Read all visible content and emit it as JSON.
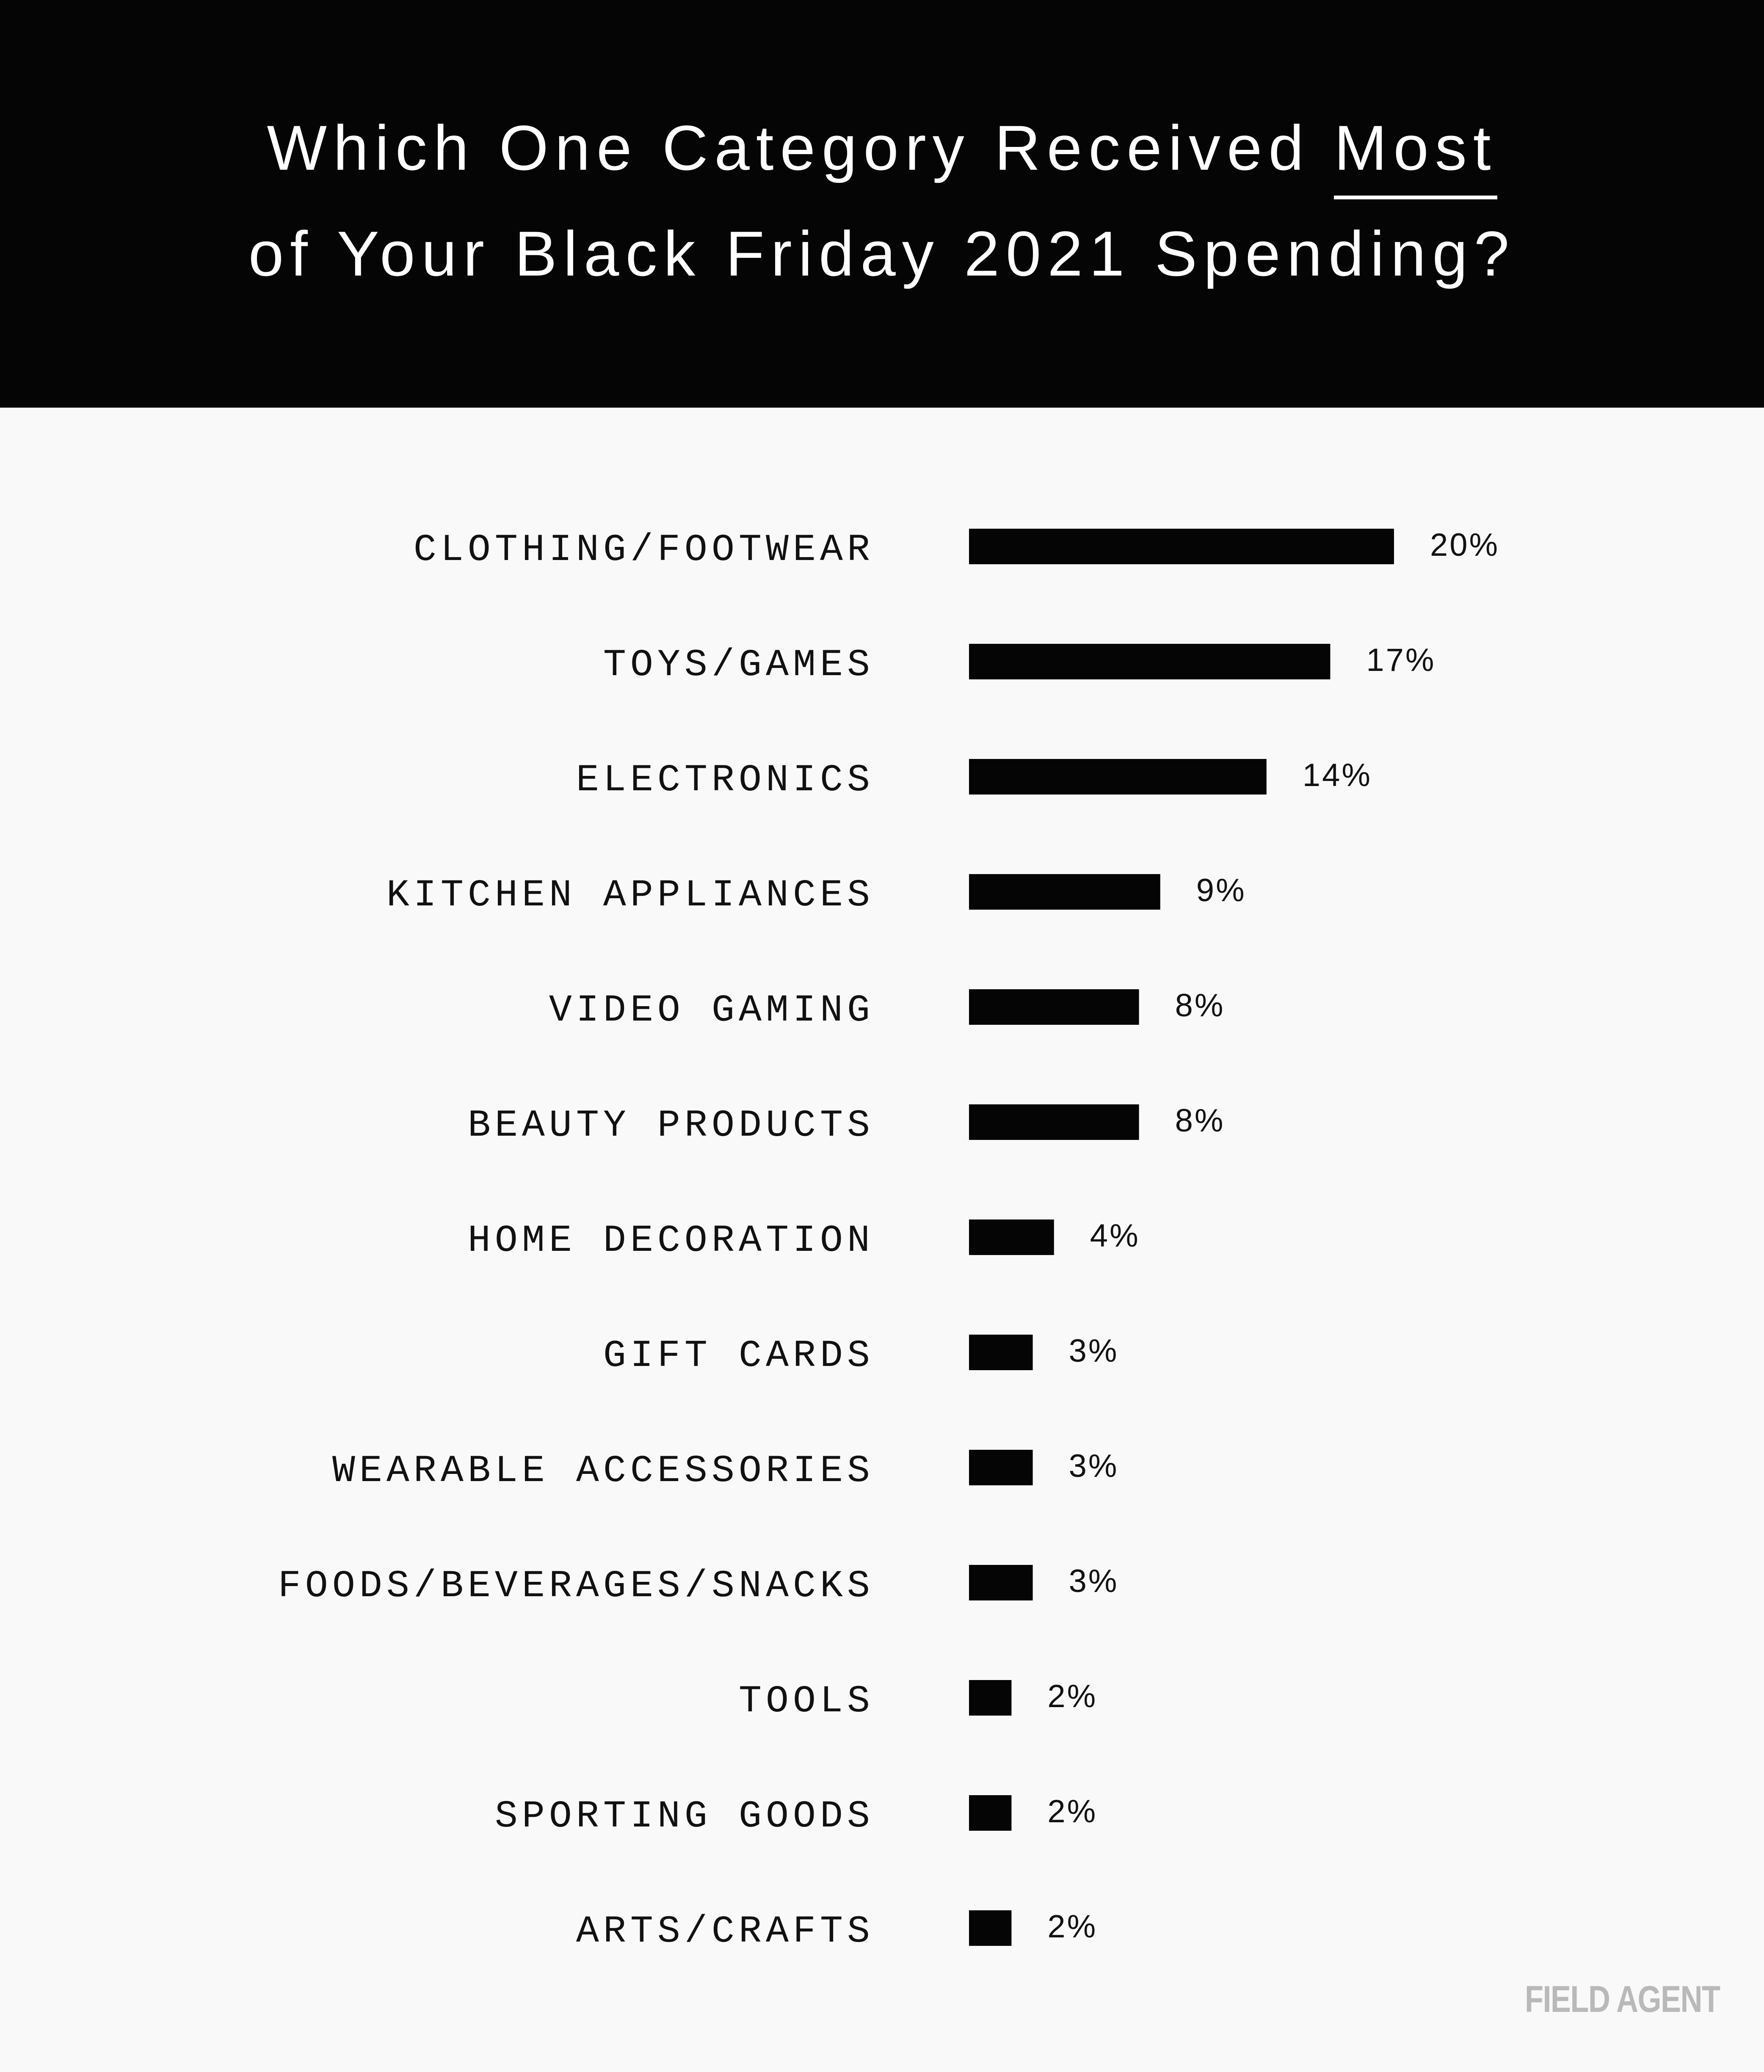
{
  "title": {
    "part1": "Which One Category Received ",
    "emphasis": "Most",
    "line2": "of Your Black Friday 2021 Spending?"
  },
  "brand": "FIELD AGENT",
  "colors": {
    "background": "#f9f9f9",
    "header": "#050505",
    "bar": "#050505"
  },
  "chart_data": {
    "type": "bar",
    "orientation": "horizontal",
    "title": "Which One Category Received Most of Your Black Friday 2021 Spending?",
    "categories": [
      "CLOTHING/FOOTWEAR",
      "TOYS/GAMES",
      "ELECTRONICS",
      "KITCHEN APPLIANCES",
      "VIDEO GAMING",
      "BEAUTY PRODUCTS",
      "HOME DECORATION",
      "GIFT CARDS",
      "WEARABLE ACCESSORIES",
      "FOODS/BEVERAGES/SNACKS",
      "TOOLS",
      "SPORTING GOODS",
      "ARTS/CRAFTS"
    ],
    "values": [
      20,
      17,
      14,
      9,
      8,
      8,
      4,
      3,
      3,
      3,
      2,
      2,
      2
    ],
    "labels": [
      "20%",
      "17%",
      "14%",
      "9%",
      "8%",
      "8%",
      "4%",
      "3%",
      "3%",
      "3%",
      "2%",
      "2%",
      "2%"
    ],
    "unit": "%",
    "xlim": [
      0,
      20
    ],
    "grid": false,
    "legend": "none"
  }
}
